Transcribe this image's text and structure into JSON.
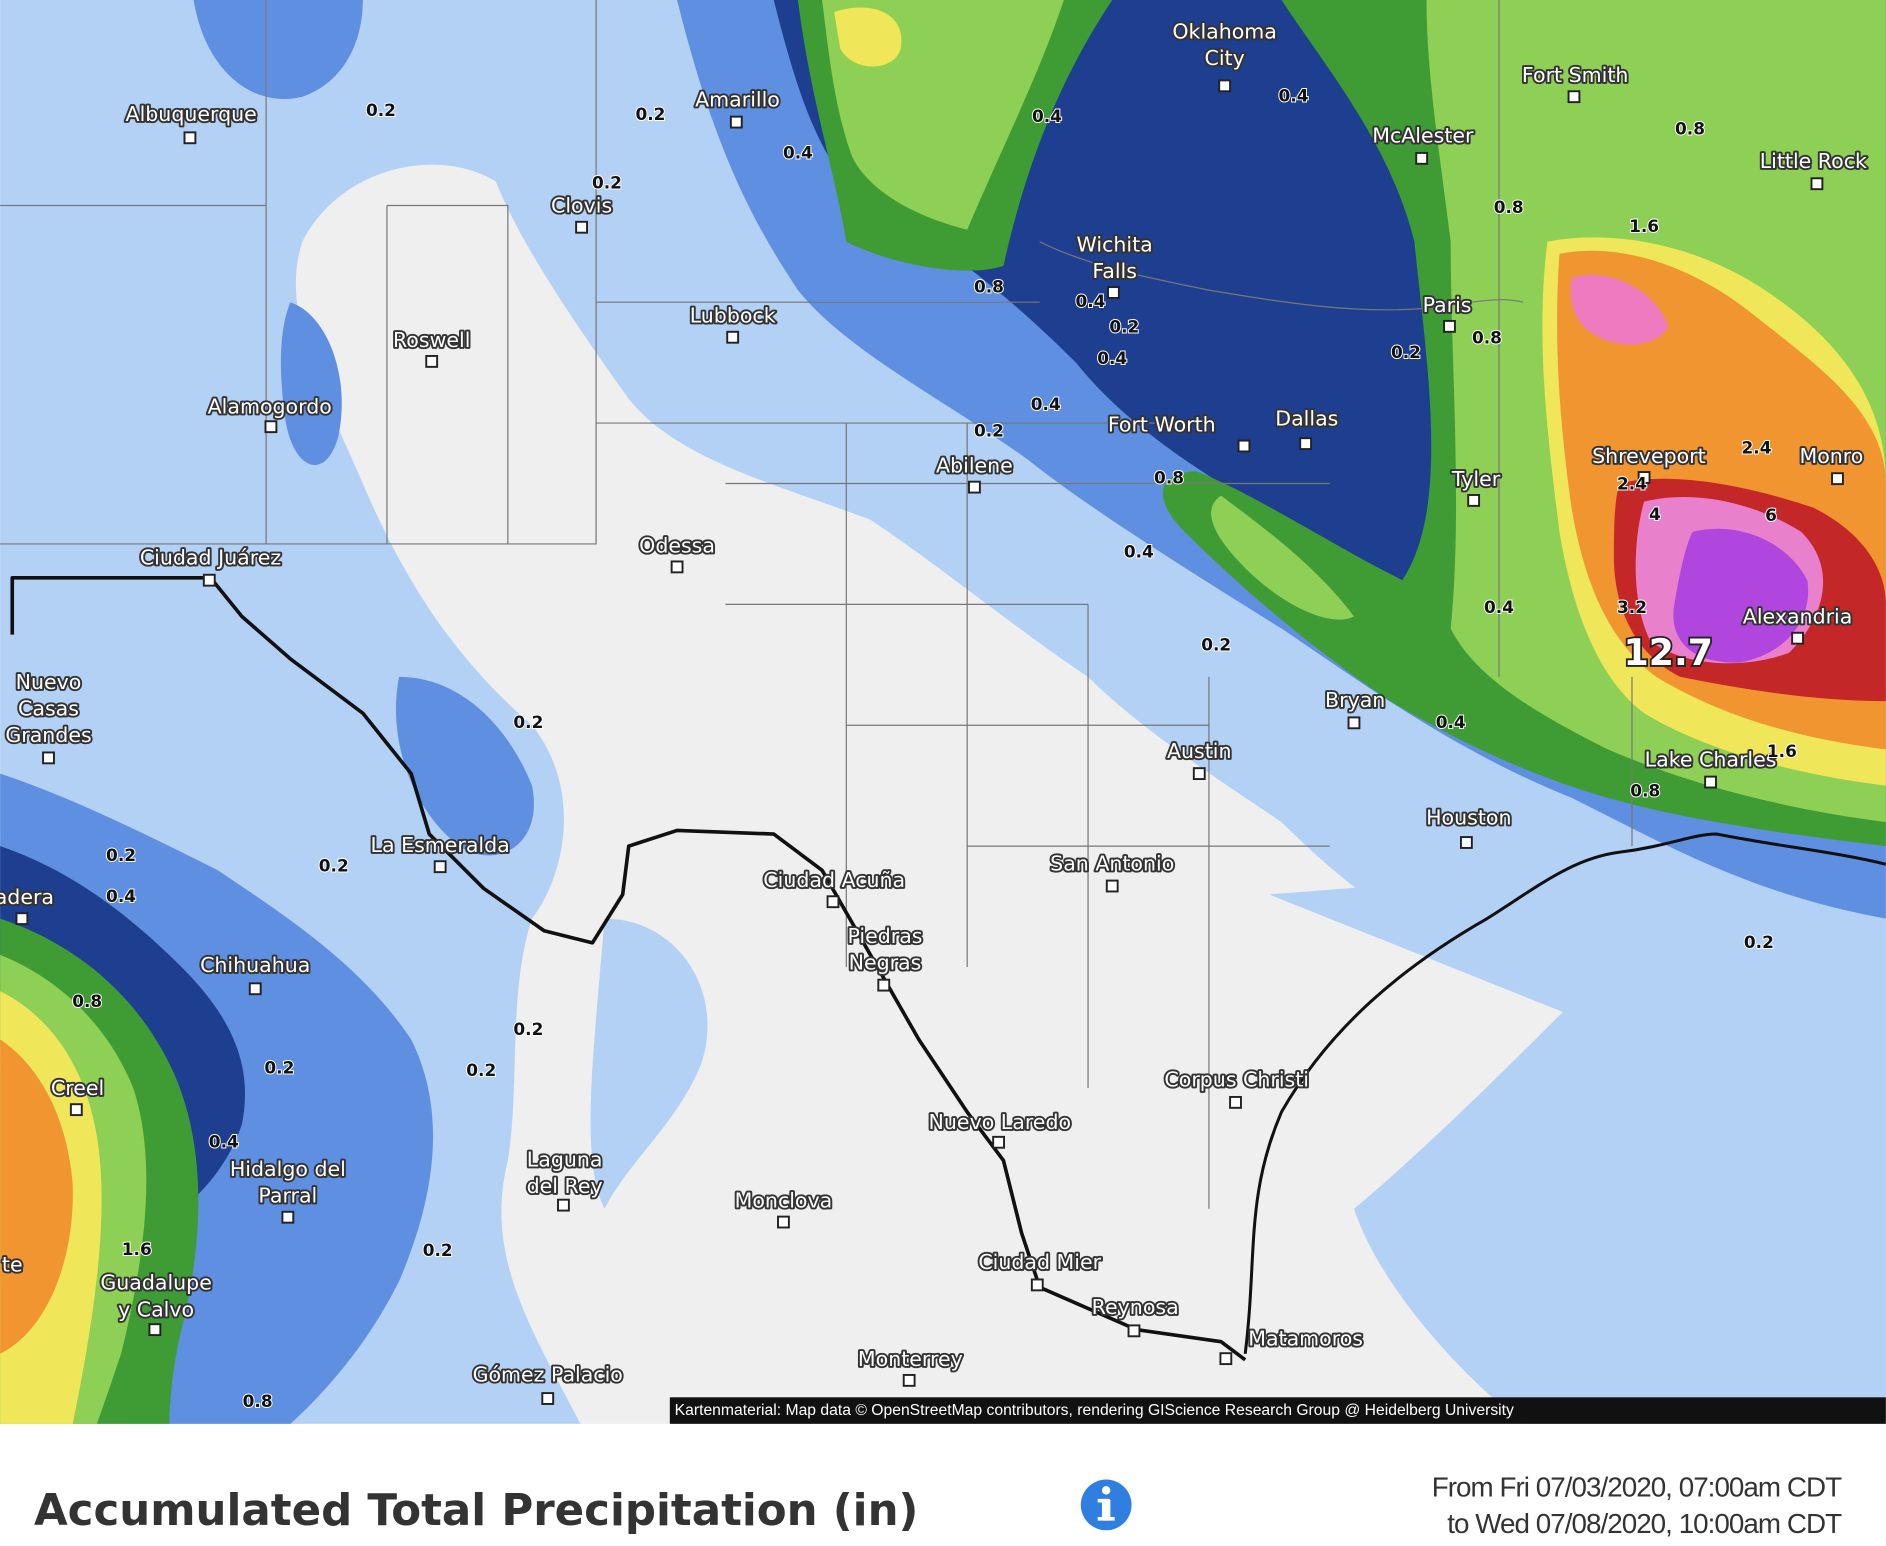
{
  "map": {
    "places": [
      {
        "lines": [
          "Albuquerque"
        ]
      },
      {
        "lines": [
          "Amarillo"
        ]
      },
      {
        "lines": [
          "Oklahoma",
          "City"
        ]
      },
      {
        "lines": [
          "Fort Smith"
        ]
      },
      {
        "lines": [
          "McAlester"
        ]
      },
      {
        "lines": [
          "Little Rock"
        ]
      },
      {
        "lines": [
          "Clovis"
        ]
      },
      {
        "lines": [
          "Wichita",
          "Falls"
        ]
      },
      {
        "lines": [
          "Lubbock"
        ]
      },
      {
        "lines": [
          "Roswell"
        ]
      },
      {
        "lines": [
          "Paris"
        ]
      },
      {
        "lines": [
          "Alamogordo"
        ]
      },
      {
        "lines": [
          "Fort Worth"
        ]
      },
      {
        "lines": [
          "Dallas"
        ]
      },
      {
        "lines": [
          "Shreveport"
        ]
      },
      {
        "lines": [
          "Monro"
        ]
      },
      {
        "lines": [
          "Abilene"
        ]
      },
      {
        "lines": [
          "Tyler"
        ]
      },
      {
        "lines": [
          "Ciudad Juárez"
        ]
      },
      {
        "lines": [
          "Odessa"
        ]
      },
      {
        "lines": [
          "Alexandria"
        ]
      },
      {
        "lines": [
          "Nuevo",
          "Casas",
          "Grandes"
        ]
      },
      {
        "lines": [
          "Bryan"
        ]
      },
      {
        "lines": [
          "Austin"
        ]
      },
      {
        "lines": [
          "Lake Charles"
        ]
      },
      {
        "lines": [
          "Houston"
        ]
      },
      {
        "lines": [
          "La Esmeralda"
        ]
      },
      {
        "lines": [
          "San Antonio"
        ]
      },
      {
        "lines": [
          "Ciudad Acuña"
        ]
      },
      {
        "lines": [
          "adera"
        ]
      },
      {
        "lines": [
          "Piedras",
          "Negras"
        ]
      },
      {
        "lines": [
          "Chihuahua"
        ]
      },
      {
        "lines": [
          "Corpus Christi"
        ]
      },
      {
        "lines": [
          "Creel"
        ]
      },
      {
        "lines": [
          "Nuevo Laredo"
        ]
      },
      {
        "lines": [
          "Hidalgo del",
          "Parral"
        ]
      },
      {
        "lines": [
          "Laguna",
          "del Rey"
        ]
      },
      {
        "lines": [
          "Monclova"
        ]
      },
      {
        "lines": [
          "Ciudad Mier"
        ]
      },
      {
        "lines": [
          "te"
        ]
      },
      {
        "lines": [
          "Guadalupe",
          "y Calvo"
        ]
      },
      {
        "lines": [
          "Reynosa"
        ]
      },
      {
        "lines": [
          "Matamoros"
        ]
      },
      {
        "lines": [
          "Monterrey"
        ]
      },
      {
        "lines": [
          "Gómez Palacio"
        ]
      }
    ],
    "contour_labels": [
      "0.2",
      "0.2",
      "0.4",
      "0.2",
      "0.4",
      "0.4",
      "0.8",
      "0.8",
      "1.6",
      "0.8",
      "0.4",
      "0.2",
      "0.4",
      "0.2",
      "0.8",
      "0.4",
      "0.2",
      "0.8",
      "2.4",
      "2.4",
      "4",
      "6",
      "0.4",
      "3.2",
      "12.7",
      "0.4",
      "0.2",
      "0.2",
      "0.4",
      "1.6",
      "0.8",
      "0.2",
      "0.2",
      "0.4",
      "0.2",
      "0.8",
      "0.2",
      "0.2",
      "0.2",
      "0.4",
      "1.6",
      "0.2",
      "0.8"
    ],
    "attribution": "Kartenmaterial: Map data © OpenStreetMap contributors, rendering GIScience Research Group @ Heidelberg University",
    "title": "Accumulated Total Precipitation (in)",
    "date_range": [
      "From Fri 07/03/2020, 07:00am CDT",
      "to Wed 07/08/2020, 10:00am CDT"
    ]
  }
}
